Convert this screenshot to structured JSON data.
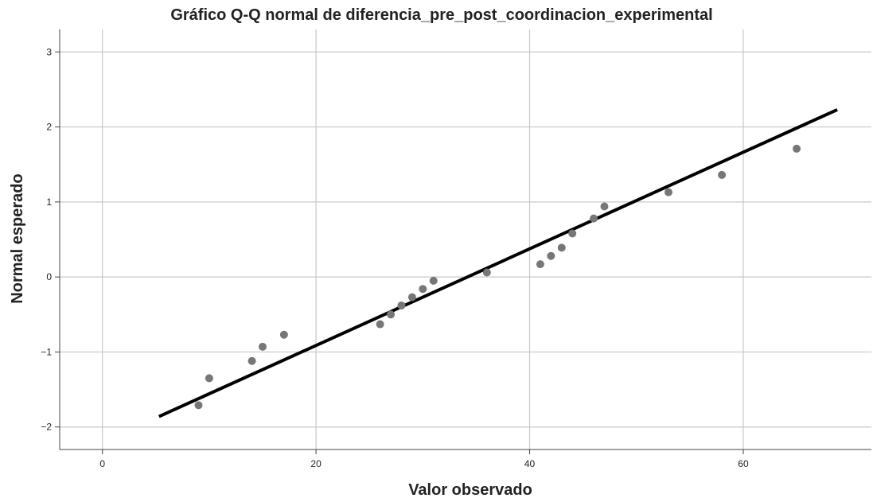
{
  "chart_data": {
    "type": "scatter",
    "title": "Gráfico Q-Q normal de diferencia_pre_post_coordinacion_experimental",
    "xlabel": "Valor observado",
    "ylabel": "Normal esperado",
    "xlim": [
      -4,
      72
    ],
    "ylim": [
      -2.3,
      3.3
    ],
    "xticks": [
      0,
      20,
      40,
      60
    ],
    "xtick_labels": [
      "0",
      "20",
      "40",
      "60"
    ],
    "yticks": [
      -2,
      -1,
      0,
      1,
      2,
      3
    ],
    "ytick_labels": [
      "−2",
      "−1",
      "0",
      "1",
      "2",
      "3"
    ],
    "grid": true,
    "series": [
      {
        "kind": "points",
        "color": "#777777",
        "points": [
          {
            "x": 9,
            "y": -1.71
          },
          {
            "x": 10,
            "y": -1.35
          },
          {
            "x": 14,
            "y": -1.12
          },
          {
            "x": 15,
            "y": -0.93
          },
          {
            "x": 17,
            "y": -0.77
          },
          {
            "x": 26,
            "y": -0.63
          },
          {
            "x": 27,
            "y": -0.5
          },
          {
            "x": 28,
            "y": -0.38
          },
          {
            "x": 29,
            "y": -0.27
          },
          {
            "x": 30,
            "y": -0.16
          },
          {
            "x": 31,
            "y": -0.05
          },
          {
            "x": 36,
            "y": 0.06
          },
          {
            "x": 41,
            "y": 0.17
          },
          {
            "x": 42,
            "y": 0.28
          },
          {
            "x": 43,
            "y": 0.39
          },
          {
            "x": 44,
            "y": 0.58
          },
          {
            "x": 46,
            "y": 0.78
          },
          {
            "x": 47,
            "y": 0.94
          },
          {
            "x": 53,
            "y": 1.13
          },
          {
            "x": 58,
            "y": 1.36
          },
          {
            "x": 65,
            "y": 1.71
          }
        ]
      },
      {
        "kind": "reference-line",
        "color": "#000000",
        "points": [
          {
            "x": 5.3,
            "y": -1.86
          },
          {
            "x": 68.8,
            "y": 2.23
          }
        ]
      }
    ]
  }
}
